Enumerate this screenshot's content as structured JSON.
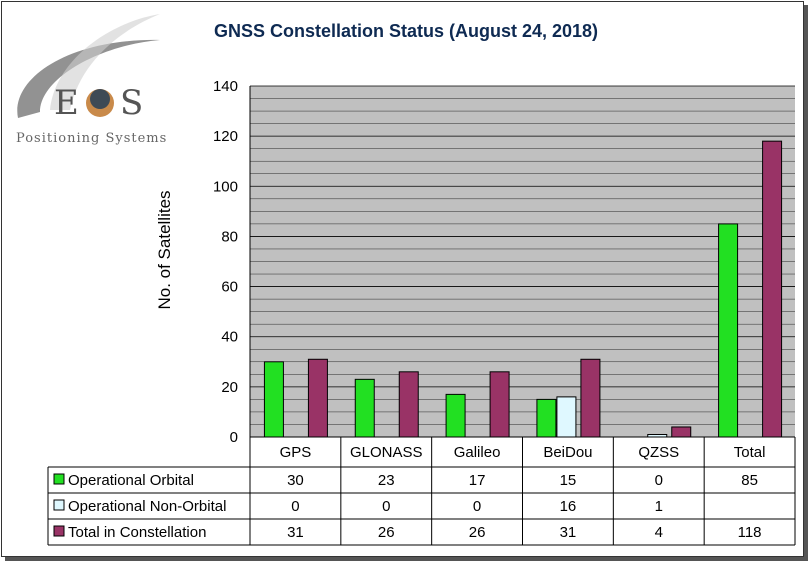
{
  "logo": {
    "letters": [
      "E",
      "S"
    ],
    "subtitle": "Positioning Systems"
  },
  "chart_data": {
    "type": "bar",
    "title": "GNSS Constellation Status (August 24, 2018)",
    "ylabel": "No. of Satellites",
    "xlabel": "",
    "ylim": [
      0,
      140
    ],
    "yticks": [
      0,
      20,
      40,
      60,
      80,
      100,
      120,
      140
    ],
    "grid": true,
    "categories": [
      "GPS",
      "GLONASS",
      "Galileo",
      "BeiDou",
      "QZSS",
      "Total"
    ],
    "series": [
      {
        "name": "Operational Orbital",
        "color": "#22e022",
        "values": [
          30,
          23,
          17,
          15,
          0,
          85
        ],
        "labels": [
          "30",
          "23",
          "17",
          "15",
          "0",
          "85"
        ]
      },
      {
        "name": "Operational Non-Orbital",
        "color": "#dff8ff",
        "values": [
          0,
          0,
          0,
          16,
          1,
          0
        ],
        "labels": [
          "0",
          "0",
          "0",
          "16",
          "1",
          ""
        ]
      },
      {
        "name": "Total in Constellation",
        "color": "#993366",
        "values": [
          31,
          26,
          26,
          31,
          4,
          118
        ],
        "labels": [
          "31",
          "26",
          "26",
          "31",
          "4",
          "118"
        ]
      }
    ]
  }
}
